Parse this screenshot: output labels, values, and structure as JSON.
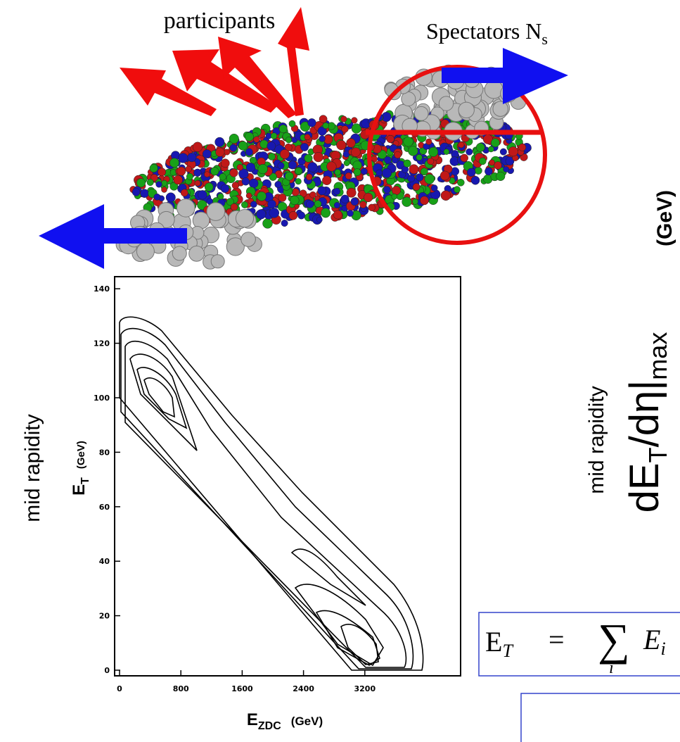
{
  "illustration": {
    "participants_label": "participants",
    "spectators_label": "Spectators N",
    "spectators_subscript": "s"
  },
  "plot": {
    "y_title": "mid rapidity",
    "y_symbol": "E",
    "y_subscript": "T",
    "y_unit": "(GeV)",
    "yticks": [
      0,
      20,
      40,
      60,
      80,
      100,
      120,
      140
    ],
    "x_symbol": "E",
    "x_subscript": "ZDC",
    "x_unit": "(GeV)",
    "xticks": [
      0,
      800,
      1600,
      2400,
      3200
    ]
  },
  "right_axis": {
    "unit": "(GeV)",
    "title": "mid rapidity",
    "symbol": "dE",
    "subscript": "T",
    "symbol_rest": "/dη|",
    "subscript2": "max"
  },
  "formula": {
    "lhs": "E",
    "lhs_sub": "T",
    "op": "=",
    "sum": "∑",
    "index": "i",
    "rhs": "E",
    "rhs_sub": "i"
  }
}
